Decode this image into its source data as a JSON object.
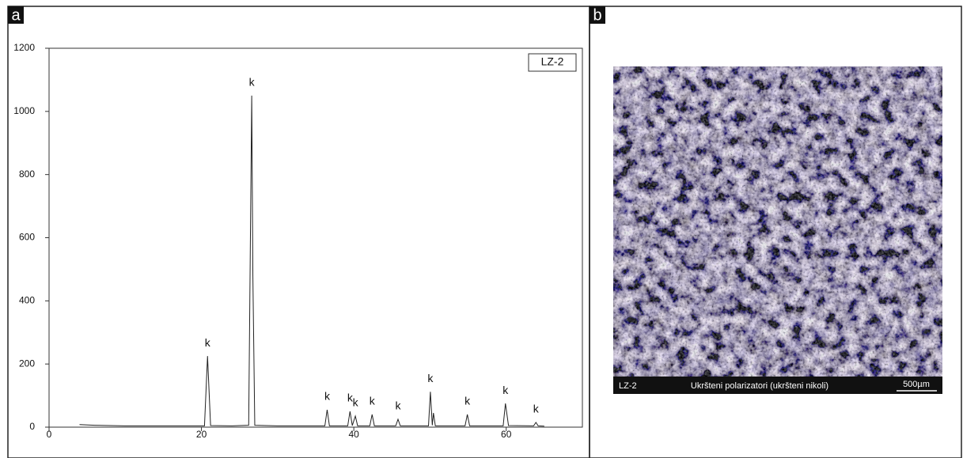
{
  "chart_data": {
    "type": "line",
    "x": [
      4,
      6,
      10,
      15,
      20.4,
      20.8,
      21.2,
      24,
      26.2,
      26.6,
      26.75,
      27.0,
      30,
      33,
      36.2,
      36.5,
      36.8,
      39.2,
      39.5,
      39.8,
      40.2,
      40.5,
      42.1,
      42.4,
      42.7,
      45.5,
      45.8,
      46.1,
      49.8,
      50.05,
      50.3,
      50.45,
      50.7,
      54.6,
      54.9,
      55.2,
      59.6,
      59.9,
      60.3,
      63.6,
      63.9,
      64.2,
      65
    ],
    "values": [
      8,
      6,
      4,
      4,
      4,
      225,
      5,
      4,
      6,
      1050,
      480,
      6,
      4,
      4,
      4,
      55,
      4,
      4,
      50,
      5,
      35,
      4,
      4,
      40,
      4,
      4,
      25,
      4,
      4,
      112,
      6,
      45,
      4,
      4,
      40,
      4,
      4,
      75,
      5,
      4,
      15,
      4,
      3
    ],
    "color": "#222222",
    "xlim": [
      0,
      70
    ],
    "xticks": [
      0,
      20,
      40,
      60
    ],
    "ylim": [
      0,
      1200
    ],
    "yticks": [
      0,
      200,
      400,
      600,
      800,
      1000,
      1200
    ],
    "legend_label": "LZ-2",
    "annotations": [
      {
        "text": "k",
        "x": 20.8,
        "y": 225
      },
      {
        "text": "k",
        "x": 26.6,
        "y": 1050
      },
      {
        "text": "k",
        "x": 36.5,
        "y": 55
      },
      {
        "text": "k",
        "x": 39.5,
        "y": 50
      },
      {
        "text": "k",
        "x": 40.2,
        "y": 35
      },
      {
        "text": "k",
        "x": 42.4,
        "y": 40
      },
      {
        "text": "k",
        "x": 45.8,
        "y": 25
      },
      {
        "text": "k",
        "x": 50.05,
        "y": 112
      },
      {
        "text": "k",
        "x": 54.9,
        "y": 40
      },
      {
        "text": "k",
        "x": 59.9,
        "y": 75
      },
      {
        "text": "k",
        "x": 63.9,
        "y": 15
      }
    ]
  },
  "panel_labels": [
    "a",
    "b"
  ],
  "image": {
    "sample": "LZ-2",
    "caption": "Ukršteni polarizatori (ukršteni nikoli)",
    "scale": "500µm"
  }
}
